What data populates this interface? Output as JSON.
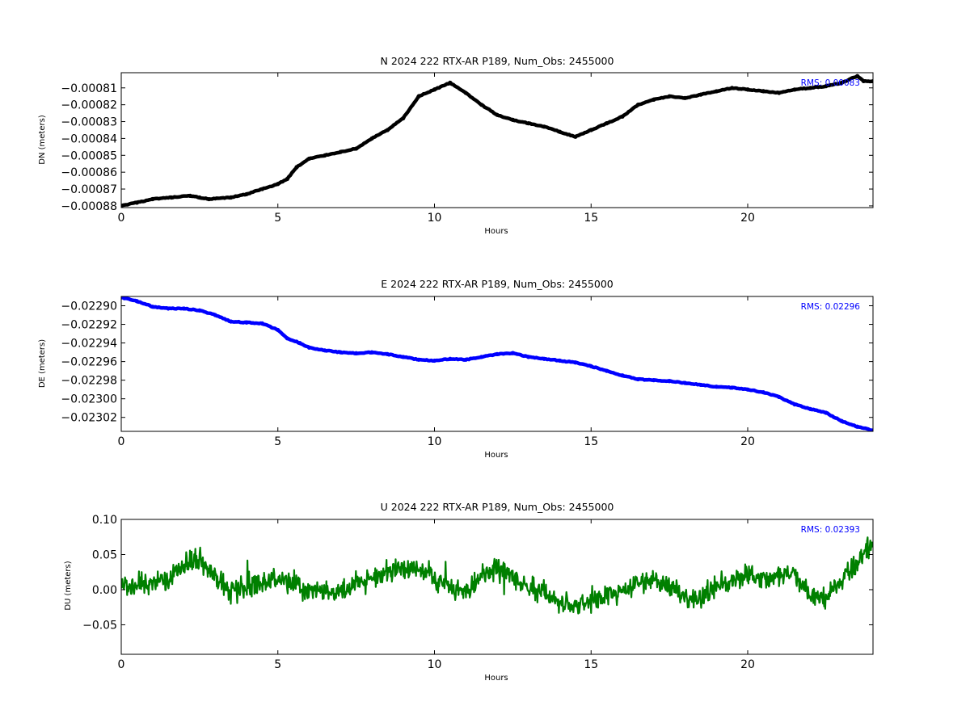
{
  "colors": {
    "north": "#000000",
    "east": "#0000ff",
    "up": "#008000",
    "rms_text": "#0000ff"
  },
  "chart_data": [
    {
      "type": "line",
      "title": "N 2024 222 RTX-AR  P189, Num_Obs: 2455000",
      "xlabel": "Hours",
      "ylabel": "DN (meters)",
      "annotation": "RMS:  0.00083",
      "series_color": "#000000",
      "xlim": [
        0,
        24
      ],
      "ylim": [
        -0.000881,
        -0.000801
      ],
      "xticks": [
        0,
        5,
        10,
        15,
        20
      ],
      "yticks": [
        -0.00081,
        -0.00082,
        -0.00083,
        -0.00084,
        -0.00085,
        -0.00086,
        -0.00087,
        -0.00088
      ],
      "ytick_labels": [
        "−0.00081",
        "−0.00082",
        "−0.00083",
        "−0.00084",
        "−0.00085",
        "−0.00086",
        "−0.00087",
        "−0.00088"
      ],
      "x": [
        0,
        0.5,
        1,
        1.6,
        2.2,
        2.5,
        2.8,
        3.5,
        4,
        4.5,
        5,
        5.3,
        5.6,
        6,
        6.5,
        7,
        7.5,
        8,
        8.5,
        9,
        9.5,
        10,
        10.5,
        11,
        11.5,
        12,
        12.5,
        13,
        13.5,
        14,
        14.5,
        15,
        15.5,
        16,
        16.5,
        17,
        17.5,
        18,
        18.5,
        19,
        19.5,
        20,
        20.5,
        21,
        21.5,
        22,
        22.5,
        23,
        23.5,
        23.7,
        24
      ],
      "y": [
        -0.00088,
        -0.000878,
        -0.000876,
        -0.000875,
        -0.000874,
        -0.000875,
        -0.000876,
        -0.000875,
        -0.000873,
        -0.00087,
        -0.000867,
        -0.000864,
        -0.000857,
        -0.000852,
        -0.00085,
        -0.000848,
        -0.000846,
        -0.00084,
        -0.000835,
        -0.000828,
        -0.000815,
        -0.000811,
        -0.000807,
        -0.000813,
        -0.00082,
        -0.000826,
        -0.000829,
        -0.000831,
        -0.000833,
        -0.000836,
        -0.000839,
        -0.000835,
        -0.000831,
        -0.000827,
        -0.00082,
        -0.000817,
        -0.000815,
        -0.000816,
        -0.000814,
        -0.000812,
        -0.00081,
        -0.000811,
        -0.000812,
        -0.000813,
        -0.000811,
        -0.00081,
        -0.000809,
        -0.000807,
        -0.000803,
        -0.000806,
        -0.000806
      ],
      "noise": 0
    },
    {
      "type": "line",
      "title": "E 2024 222 RTX-AR  P189, Num_Obs: 2455000",
      "xlabel": "Hours",
      "ylabel": "DE (meters)",
      "annotation": "RMS:  0.02296",
      "series_color": "#0000ff",
      "xlim": [
        0,
        24
      ],
      "ylim": [
        -0.023035,
        -0.02289
      ],
      "xticks": [
        0,
        5,
        10,
        15,
        20
      ],
      "yticks": [
        -0.0229,
        -0.02292,
        -0.02294,
        -0.02296,
        -0.02298,
        -0.023,
        -0.02302
      ],
      "ytick_labels": [
        "−0.02290",
        "−0.02292",
        "−0.02294",
        "−0.02296",
        "−0.02298",
        "−0.02300",
        "−0.02302"
      ],
      "x": [
        0,
        0.5,
        1,
        1.5,
        2,
        2.5,
        3,
        3.5,
        4,
        4.5,
        5,
        5.3,
        5.7,
        6,
        6.5,
        7,
        7.5,
        8,
        8.5,
        9,
        9.5,
        10,
        10.5,
        11,
        11.5,
        12,
        12.5,
        13,
        13.5,
        14,
        14.5,
        15,
        15.5,
        16,
        16.5,
        17,
        17.5,
        18,
        18.5,
        19,
        19.5,
        20,
        20.5,
        21,
        21.5,
        22,
        22.5,
        23,
        23.5,
        24
      ],
      "y": [
        -0.022891,
        -0.022895,
        -0.022901,
        -0.022903,
        -0.022903,
        -0.022905,
        -0.02291,
        -0.022917,
        -0.022918,
        -0.022919,
        -0.022926,
        -0.022935,
        -0.02294,
        -0.022945,
        -0.022948,
        -0.02295,
        -0.022951,
        -0.02295,
        -0.022952,
        -0.022955,
        -0.022958,
        -0.022959,
        -0.022957,
        -0.022958,
        -0.022955,
        -0.022952,
        -0.022951,
        -0.022955,
        -0.022957,
        -0.022959,
        -0.022961,
        -0.022965,
        -0.02297,
        -0.022975,
        -0.022979,
        -0.02298,
        -0.022981,
        -0.022983,
        -0.022985,
        -0.022987,
        -0.022988,
        -0.02299,
        -0.022993,
        -0.022998,
        -0.023006,
        -0.023011,
        -0.023015,
        -0.023024,
        -0.02303,
        -0.023034
      ],
      "noise": 0
    },
    {
      "type": "line",
      "title": "U 2024 222 RTX-AR  P189, Num_Obs: 2455000",
      "xlabel": "Hours",
      "ylabel": "DU (meters)",
      "annotation": "RMS:  0.02393",
      "series_color": "#008000",
      "xlim": [
        0,
        24
      ],
      "ylim": [
        -0.092,
        0.1
      ],
      "xticks": [
        0,
        5,
        10,
        15,
        20
      ],
      "yticks": [
        0.1,
        0.05,
        0.0,
        -0.05
      ],
      "ytick_labels": [
        "0.10",
        "0.05",
        "0.00",
        "−0.05"
      ],
      "x": [
        0,
        0.5,
        1,
        1.5,
        2,
        2.5,
        3,
        3.5,
        4,
        4.5,
        5,
        5.5,
        6,
        6.5,
        7,
        7.5,
        8,
        8.5,
        9,
        9.5,
        10,
        10.5,
        11,
        11.5,
        12,
        12.5,
        13,
        13.5,
        14,
        14.5,
        15,
        15.5,
        16,
        16.5,
        17,
        17.5,
        18,
        18.5,
        19,
        19.5,
        20,
        20.5,
        21,
        21.5,
        22,
        22.5,
        23,
        23.5,
        24
      ],
      "y": [
        0.0,
        0.01,
        0.01,
        0.015,
        0.04,
        0.045,
        0.02,
        -0.005,
        0.005,
        0.01,
        0.015,
        0.01,
        -0.005,
        0.0,
        -0.005,
        0.01,
        0.015,
        0.025,
        0.03,
        0.03,
        0.015,
        0.005,
        -0.005,
        0.02,
        0.03,
        0.02,
        0.005,
        -0.005,
        -0.02,
        -0.025,
        -0.015,
        -0.01,
        0.0,
        0.01,
        0.015,
        0.005,
        -0.01,
        -0.015,
        0.005,
        0.015,
        0.02,
        0.015,
        0.02,
        0.02,
        -0.01,
        -0.015,
        0.015,
        0.04,
        0.065
      ],
      "noise": 0.022
    }
  ]
}
